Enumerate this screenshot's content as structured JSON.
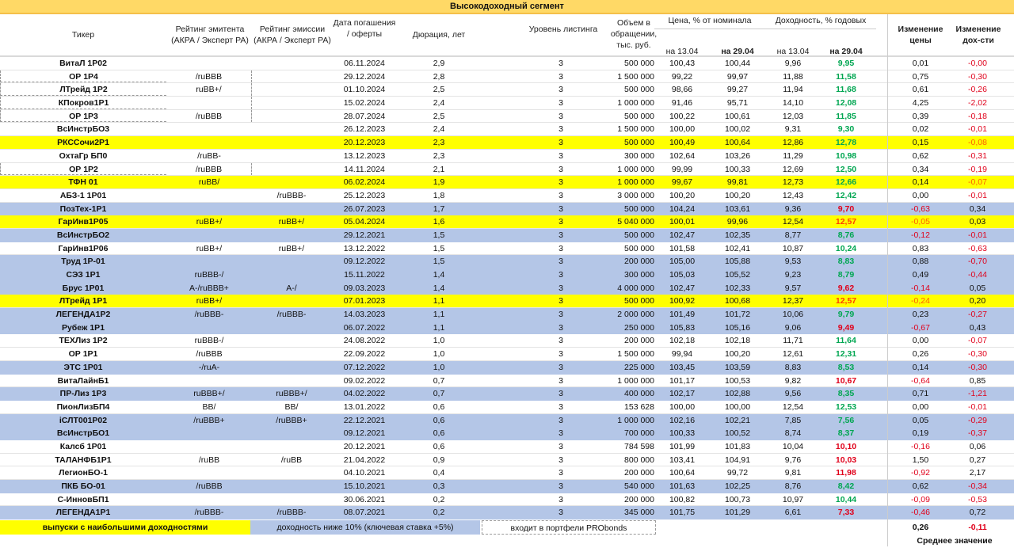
{
  "title": "Высокодоходный сегмент",
  "headers": {
    "ticker": "Тикер",
    "issuer_rating": "Рейтинг эмитента (АКРА / Эксперт РА)",
    "issue_rating": "Рейтинг эмиссии (АКРА / Эксперт РА)",
    "date": "Дата погашения / оферты",
    "duration": "Дюрация, лет",
    "listing": "Уровень листинга",
    "volume": "Объем в обращении, тыс. руб.",
    "price_group": "Цена, % от номинала",
    "yield_group": "Доходность, % годовых",
    "on_1304": "на 13.04",
    "on_2904": "на 29.04",
    "price_change": "Изменение цены",
    "yield_change": "Изменение дох-сти"
  },
  "colors": {
    "yellow": "#ffff00",
    "blue": "#b4c6e7",
    "header": "#ffd966",
    "green": "#00a651",
    "red": "#e0001a"
  },
  "rows": [
    {
      "t": "ВитаЛ 1Р02",
      "ie": "",
      "em": "",
      "d": "06.11.2024",
      "dur": "2,9",
      "lst": "3",
      "vol": "500 000",
      "p13": "100,43",
      "p29": "100,44",
      "y13": "9,96",
      "y29": "9,95",
      "y29c": "green",
      "dp": "0,01",
      "dy": "-0,00",
      "hl": "none"
    },
    {
      "t": "ОР 1Р4",
      "ie": "/ruBBB",
      "em": "",
      "d": "29.12.2024",
      "dur": "2,8",
      "lst": "3",
      "vol": "1 500 000",
      "p13": "99,22",
      "p29": "99,97",
      "y13": "11,88",
      "y29": "11,58",
      "y29c": "green",
      "dp": "0,75",
      "dy": "-0,30",
      "hl": "none",
      "pf": true
    },
    {
      "t": "ЛТрейд 1Р2",
      "ie": "ruBB+/",
      "em": "",
      "d": "01.10.2024",
      "dur": "2,5",
      "lst": "3",
      "vol": "500 000",
      "p13": "98,66",
      "p29": "99,27",
      "y13": "11,94",
      "y29": "11,68",
      "y29c": "green",
      "dp": "0,61",
      "dy": "-0,26",
      "hl": "none",
      "pf": true
    },
    {
      "t": "КПокров1Р1",
      "ie": "",
      "em": "",
      "d": "15.02.2024",
      "dur": "2,4",
      "lst": "3",
      "vol": "1 000 000",
      "p13": "91,46",
      "p29": "95,71",
      "y13": "14,10",
      "y29": "12,08",
      "y29c": "green",
      "dp": "4,25",
      "dy": "-2,02",
      "hl": "none",
      "pf": true
    },
    {
      "t": "ОР 1Р3",
      "ie": "/ruBBB",
      "em": "",
      "d": "28.07.2024",
      "dur": "2,5",
      "lst": "3",
      "vol": "500 000",
      "p13": "100,22",
      "p29": "100,61",
      "y13": "12,03",
      "y29": "11,85",
      "y29c": "green",
      "dp": "0,39",
      "dy": "-0,18",
      "hl": "none",
      "pf": true
    },
    {
      "t": "ВсИнстрБО3",
      "ie": "",
      "em": "",
      "d": "26.12.2023",
      "dur": "2,4",
      "lst": "3",
      "vol": "1 500 000",
      "p13": "100,00",
      "p29": "100,02",
      "y13": "9,31",
      "y29": "9,30",
      "y29c": "green",
      "dp": "0,02",
      "dy": "-0,01",
      "hl": "none"
    },
    {
      "t": "РКССочи2Р1",
      "ie": "",
      "em": "",
      "d": "20.12.2023",
      "dur": "2,3",
      "lst": "3",
      "vol": "500 000",
      "p13": "100,49",
      "p29": "100,64",
      "y13": "12,86",
      "y29": "12,78",
      "y29c": "green",
      "dp": "0,15",
      "dy": "-0,08",
      "hl": "yellow"
    },
    {
      "t": "ОхтаГр БП0",
      "ie": "/ruBB-",
      "em": "",
      "d": "13.12.2023",
      "dur": "2,3",
      "lst": "3",
      "vol": "300 000",
      "p13": "102,64",
      "p29": "103,26",
      "y13": "11,29",
      "y29": "10,98",
      "y29c": "green",
      "dp": "0,62",
      "dy": "-0,31",
      "hl": "none"
    },
    {
      "t": "ОР 1Р2",
      "ie": "/ruBBB",
      "em": "",
      "d": "14.11.2024",
      "dur": "2,1",
      "lst": "3",
      "vol": "1 000 000",
      "p13": "99,99",
      "p29": "100,33",
      "y13": "12,69",
      "y29": "12,50",
      "y29c": "green",
      "dp": "0,34",
      "dy": "-0,19",
      "hl": "none",
      "pf": true
    },
    {
      "t": "ТФН 01",
      "ie": "ruBB/",
      "em": "",
      "d": "06.02.2024",
      "dur": "1,9",
      "lst": "3",
      "vol": "1 000 000",
      "p13": "99,67",
      "p29": "99,81",
      "y13": "12,73",
      "y29": "12,66",
      "y29c": "green",
      "dp": "0,14",
      "dy": "-0,07",
      "hl": "yellow"
    },
    {
      "t": "АБЗ-1 1Р01",
      "ie": "",
      "em": "/ruBBB-",
      "d": "25.12.2023",
      "dur": "1,8",
      "lst": "3",
      "vol": "3 000 000",
      "p13": "100,20",
      "p29": "100,20",
      "y13": "12,43",
      "y29": "12,42",
      "y29c": "green",
      "dp": "0,00",
      "dy": "-0,01",
      "hl": "none"
    },
    {
      "t": "ПозТех-1Р1",
      "ie": "",
      "em": "",
      "d": "26.07.2023",
      "dur": "1,7",
      "lst": "3",
      "vol": "500 000",
      "p13": "104,24",
      "p29": "103,61",
      "y13": "9,36",
      "y29": "9,70",
      "y29c": "red",
      "dp": "-0,63",
      "dy": "0,34",
      "hl": "blue"
    },
    {
      "t": "ГарИнв1Р05",
      "ie": "ruBB+/",
      "em": "ruBB+/",
      "d": "05.04.2024",
      "dur": "1,6",
      "lst": "3",
      "vol": "5 040 000",
      "p13": "100,01",
      "p29": "99,96",
      "y13": "12,54",
      "y29": "12,57",
      "y29c": "red",
      "dp": "-0,05",
      "dy": "0,03",
      "hl": "yellow"
    },
    {
      "t": "ВсИнстрБО2",
      "ie": "",
      "em": "",
      "d": "29.12.2021",
      "dur": "1,5",
      "lst": "3",
      "vol": "500 000",
      "p13": "102,47",
      "p29": "102,35",
      "y13": "8,77",
      "y29": "8,76",
      "y29c": "green",
      "dp": "-0,12",
      "dy": "-0,01",
      "hl": "blue"
    },
    {
      "t": "ГарИнв1Р06",
      "ie": "ruBB+/",
      "em": "ruBB+/",
      "d": "13.12.2022",
      "dur": "1,5",
      "lst": "3",
      "vol": "500 000",
      "p13": "101,58",
      "p29": "102,41",
      "y13": "10,87",
      "y29": "10,24",
      "y29c": "green",
      "dp": "0,83",
      "dy": "-0,63",
      "hl": "none"
    },
    {
      "t": "Труд 1Р-01",
      "ie": "",
      "em": "",
      "d": "09.12.2022",
      "dur": "1,5",
      "lst": "3",
      "vol": "200 000",
      "p13": "105,00",
      "p29": "105,88",
      "y13": "9,53",
      "y29": "8,83",
      "y29c": "green",
      "dp": "0,88",
      "dy": "-0,70",
      "hl": "blue"
    },
    {
      "t": "СЭЗ 1Р1",
      "ie": "ruBBB-/",
      "em": "",
      "d": "15.11.2022",
      "dur": "1,4",
      "lst": "3",
      "vol": "300 000",
      "p13": "105,03",
      "p29": "105,52",
      "y13": "9,23",
      "y29": "8,79",
      "y29c": "green",
      "dp": "0,49",
      "dy": "-0,44",
      "hl": "blue"
    },
    {
      "t": "Брус 1Р01",
      "ie": "A-/ruBBB+",
      "em": "A-/",
      "d": "09.03.2023",
      "dur": "1,4",
      "lst": "3",
      "vol": "4 000 000",
      "p13": "102,47",
      "p29": "102,33",
      "y13": "9,57",
      "y29": "9,62",
      "y29c": "red",
      "dp": "-0,14",
      "dy": "0,05",
      "hl": "blue"
    },
    {
      "t": "ЛТрейд 1Р1",
      "ie": "ruBB+/",
      "em": "",
      "d": "07.01.2023",
      "dur": "1,1",
      "lst": "3",
      "vol": "500 000",
      "p13": "100,92",
      "p29": "100,68",
      "y13": "12,37",
      "y29": "12,57",
      "y29c": "red",
      "dp": "-0,24",
      "dy": "0,20",
      "hl": "yellow"
    },
    {
      "t": "ЛЕГЕНДА1Р2",
      "ie": "/ruBBB-",
      "em": "/ruBBB-",
      "d": "14.03.2023",
      "dur": "1,1",
      "lst": "3",
      "vol": "2 000 000",
      "p13": "101,49",
      "p29": "101,72",
      "y13": "10,06",
      "y29": "9,79",
      "y29c": "green",
      "dp": "0,23",
      "dy": "-0,27",
      "hl": "blue"
    },
    {
      "t": "Рубеж 1Р1",
      "ie": "",
      "em": "",
      "d": "06.07.2022",
      "dur": "1,1",
      "lst": "3",
      "vol": "250 000",
      "p13": "105,83",
      "p29": "105,16",
      "y13": "9,06",
      "y29": "9,49",
      "y29c": "red",
      "dp": "-0,67",
      "dy": "0,43",
      "hl": "blue"
    },
    {
      "t": "ТЕХЛиз 1Р2",
      "ie": "ruBBB-/",
      "em": "",
      "d": "24.08.2022",
      "dur": "1,0",
      "lst": "3",
      "vol": "200 000",
      "p13": "102,18",
      "p29": "102,18",
      "y13": "11,71",
      "y29": "11,64",
      "y29c": "green",
      "dp": "0,00",
      "dy": "-0,07",
      "hl": "none"
    },
    {
      "t": "ОР 1Р1",
      "ie": "/ruBBB",
      "em": "",
      "d": "22.09.2022",
      "dur": "1,0",
      "lst": "3",
      "vol": "1 500 000",
      "p13": "99,94",
      "p29": "100,20",
      "y13": "12,61",
      "y29": "12,31",
      "y29c": "green",
      "dp": "0,26",
      "dy": "-0,30",
      "hl": "none"
    },
    {
      "t": "ЭТС 1Р01",
      "ie": "-/ruA-",
      "em": "",
      "d": "07.12.2022",
      "dur": "1,0",
      "lst": "3",
      "vol": "225 000",
      "p13": "103,45",
      "p29": "103,59",
      "y13": "8,83",
      "y29": "8,53",
      "y29c": "green",
      "dp": "0,14",
      "dy": "-0,30",
      "hl": "blue"
    },
    {
      "t": "ВитаЛайнБ1",
      "ie": "",
      "em": "",
      "d": "09.02.2022",
      "dur": "0,7",
      "lst": "3",
      "vol": "1 000 000",
      "p13": "101,17",
      "p29": "100,53",
      "y13": "9,82",
      "y29": "10,67",
      "y29c": "red",
      "dp": "-0,64",
      "dy": "0,85",
      "hl": "none"
    },
    {
      "t": "ПР-Лиз 1Р3",
      "ie": "ruBBB+/",
      "em": "ruBBB+/",
      "d": "04.02.2022",
      "dur": "0,7",
      "lst": "3",
      "vol": "400 000",
      "p13": "102,17",
      "p29": "102,88",
      "y13": "9,56",
      "y29": "8,35",
      "y29c": "green",
      "dp": "0,71",
      "dy": "-1,21",
      "hl": "blue"
    },
    {
      "t": "ПионЛизБП4",
      "ie": "BB/",
      "em": "BB/",
      "d": "13.01.2022",
      "dur": "0,6",
      "lst": "3",
      "vol": "153 628",
      "p13": "100,00",
      "p29": "100,00",
      "y13": "12,54",
      "y29": "12,53",
      "y29c": "green",
      "dp": "0,00",
      "dy": "-0,01",
      "hl": "none"
    },
    {
      "t": "iСЛТ001Р02",
      "ie": "/ruBBB+",
      "em": "/ruBBB+",
      "d": "22.12.2021",
      "dur": "0,6",
      "lst": "3",
      "vol": "1 000 000",
      "p13": "102,16",
      "p29": "102,21",
      "y13": "7,85",
      "y29": "7,56",
      "y29c": "green",
      "dp": "0,05",
      "dy": "-0,29",
      "hl": "blue"
    },
    {
      "t": "ВсИнстрБО1",
      "ie": "",
      "em": "",
      "d": "09.12.2021",
      "dur": "0,6",
      "lst": "3",
      "vol": "700 000",
      "p13": "100,33",
      "p29": "100,52",
      "y13": "8,74",
      "y29": "8,37",
      "y29c": "green",
      "dp": "0,19",
      "dy": "-0,37",
      "hl": "blue"
    },
    {
      "t": "Калсб 1Р01",
      "ie": "",
      "em": "",
      "d": "20.12.2021",
      "dur": "0,6",
      "lst": "3",
      "vol": "784 598",
      "p13": "101,99",
      "p29": "101,83",
      "y13": "10,04",
      "y29": "10,10",
      "y29c": "red",
      "dp": "-0,16",
      "dy": "0,06",
      "hl": "none"
    },
    {
      "t": "ТАЛАНФБ1Р1",
      "ie": "/ruBB",
      "em": "/ruBB",
      "d": "21.04.2022",
      "dur": "0,9",
      "lst": "3",
      "vol": "800 000",
      "p13": "103,41",
      "p29": "104,91",
      "y13": "9,76",
      "y29": "10,03",
      "y29c": "red",
      "dp": "1,50",
      "dy": "0,27",
      "hl": "none"
    },
    {
      "t": "ЛегионБО-1",
      "ie": "",
      "em": "",
      "d": "04.10.2021",
      "dur": "0,4",
      "lst": "3",
      "vol": "200 000",
      "p13": "100,64",
      "p29": "99,72",
      "y13": "9,81",
      "y29": "11,98",
      "y29c": "red",
      "dp": "-0,92",
      "dy": "2,17",
      "hl": "none"
    },
    {
      "t": "ПКБ БО-01",
      "ie": "/ruBBB",
      "em": "",
      "d": "15.10.2021",
      "dur": "0,3",
      "lst": "3",
      "vol": "540 000",
      "p13": "101,63",
      "p29": "102,25",
      "y13": "8,76",
      "y29": "8,42",
      "y29c": "green",
      "dp": "0,62",
      "dy": "-0,34",
      "hl": "blue"
    },
    {
      "t": "С-ИнновБП1",
      "ie": "",
      "em": "",
      "d": "30.06.2021",
      "dur": "0,2",
      "lst": "3",
      "vol": "200 000",
      "p13": "100,82",
      "p29": "100,73",
      "y13": "10,97",
      "y29": "10,44",
      "y29c": "green",
      "dp": "-0,09",
      "dy": "-0,53",
      "hl": "none"
    },
    {
      "t": "ЛЕГЕНДА1Р1",
      "ie": "/ruBBB-",
      "em": "/ruBBB-",
      "d": "08.07.2021",
      "dur": "0,2",
      "lst": "3",
      "vol": "345 000",
      "p13": "101,75",
      "p29": "101,29",
      "y13": "6,61",
      "y29": "7,33",
      "y29c": "red",
      "dp": "-0,46",
      "dy": "0,72",
      "hl": "blue"
    }
  ],
  "legend": {
    "yellow": "выпуски с наибольшими доходностями",
    "blue": "доходность ниже 10% (ключевая ставка +5%)",
    "portfolio": "входит в портфели PRObonds"
  },
  "average": {
    "price_change": "0,26",
    "yield_change": "-0,11",
    "label": "Среднее значение"
  }
}
